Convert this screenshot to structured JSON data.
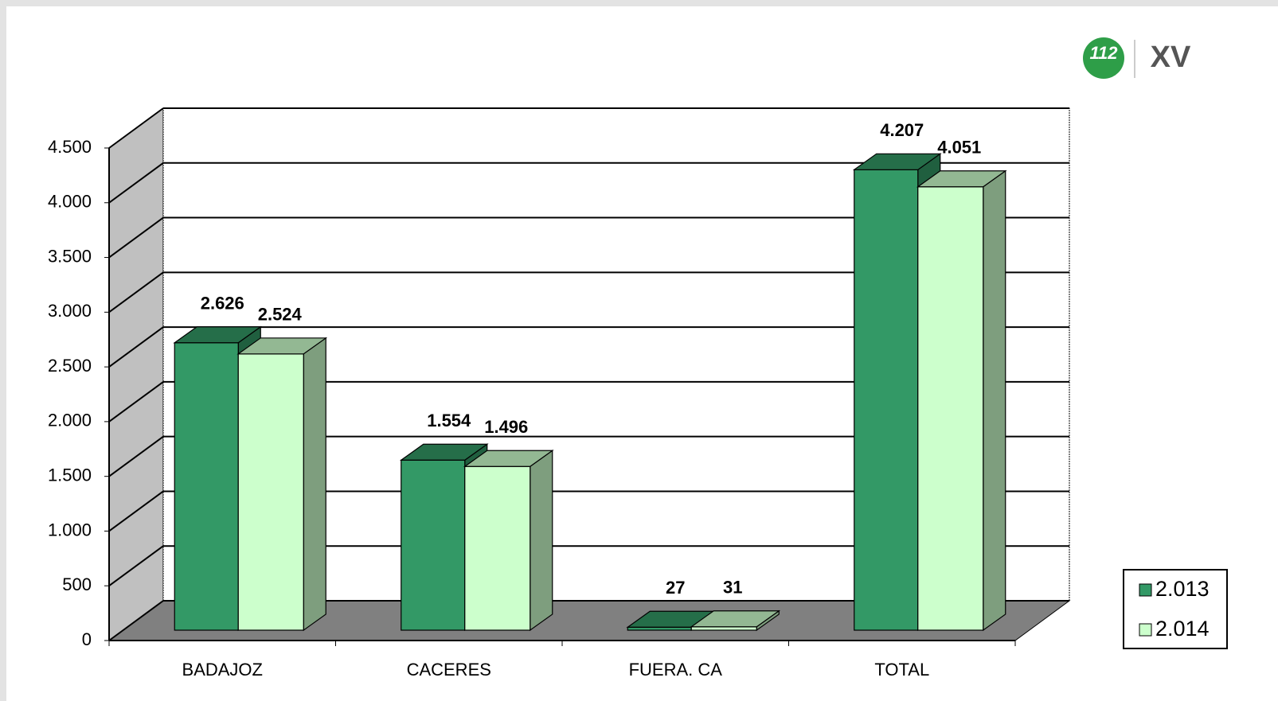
{
  "logo": {
    "badge": "112",
    "mark": "XV"
  },
  "chart_data": {
    "type": "bar3d",
    "categories": [
      "BADAJOZ",
      "CACERES",
      "FUERA. CA",
      "TOTAL"
    ],
    "series": [
      {
        "name": "2.013",
        "color": "#339966",
        "values": [
          2626,
          1554,
          27,
          4207
        ],
        "value_labels": [
          "2.626",
          "1.554",
          "27",
          "4.207"
        ]
      },
      {
        "name": "2.014",
        "color": "#ccffcc",
        "values": [
          2524,
          1496,
          31,
          4051
        ],
        "value_labels": [
          "2.524",
          "1.496",
          "31",
          "4.051"
        ]
      }
    ],
    "ylim": [
      0,
      4500
    ],
    "yticks": [
      0,
      500,
      {
        "value": 1000,
        "label": "1.000"
      },
      {
        "value": 1500,
        "label": "1.500"
      },
      {
        "value": 2000,
        "label": "2.000"
      },
      {
        "value": 2500,
        "label": "2.500"
      },
      {
        "value": 3000,
        "label": "3.000"
      },
      {
        "value": 3500,
        "label": "3.500"
      },
      {
        "value": 4000,
        "label": "4.000"
      },
      {
        "value": 4500,
        "label": "4.500"
      }
    ],
    "grid": true,
    "legend": "right"
  }
}
